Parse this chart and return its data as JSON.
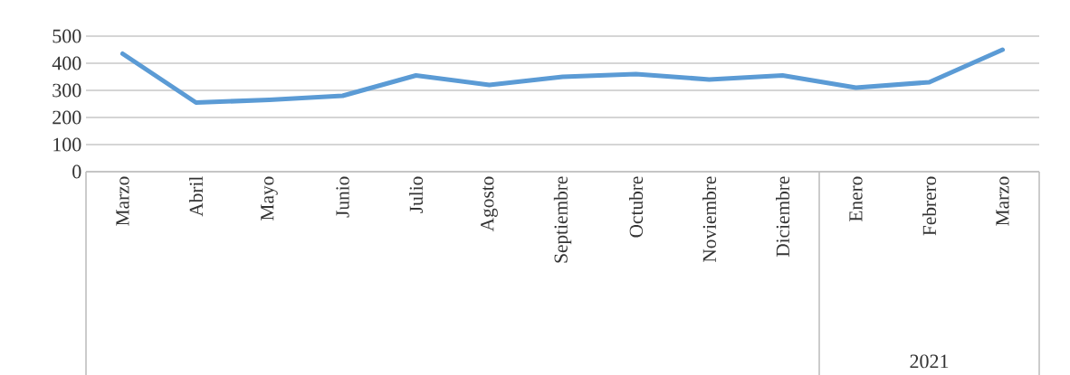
{
  "chart_data": {
    "type": "line",
    "categories": [
      "Marzo",
      "Abril",
      "Mayo",
      "Junio",
      "Julio",
      "Agosto",
      "Septiembre",
      "Octubre",
      "Noviembre",
      "Diciembre",
      "Enero",
      "Febrero",
      "Marzo"
    ],
    "series": [
      {
        "color": "#5b9bd5",
        "values": [
          435,
          255,
          265,
          280,
          355,
          320,
          350,
          360,
          340,
          355,
          310,
          330,
          450
        ]
      }
    ],
    "ylim": [
      0,
      500
    ],
    "yticks": [
      0,
      100,
      200,
      300,
      400,
      500
    ],
    "grid": "y",
    "marker": "none",
    "line_style": "solid",
    "annotations": [
      "2021"
    ]
  }
}
